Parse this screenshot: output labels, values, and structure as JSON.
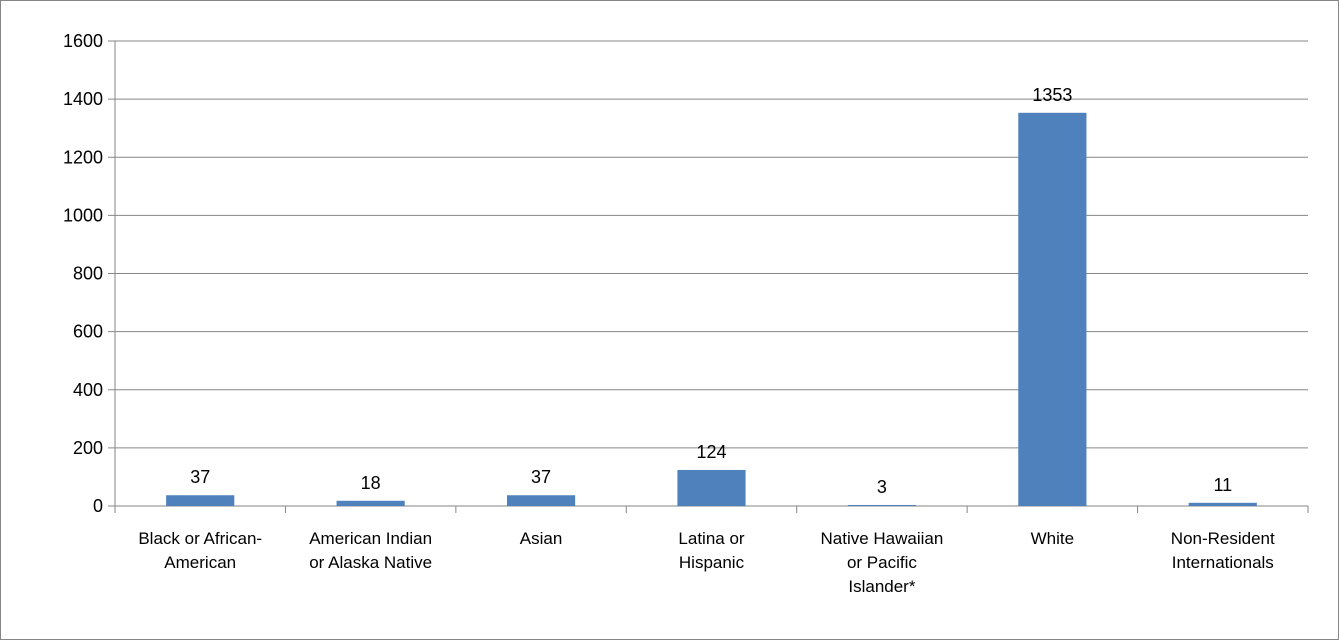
{
  "chart_data": {
    "type": "bar",
    "title": "",
    "xlabel": "",
    "ylabel": "",
    "ylim": [
      0,
      1600
    ],
    "y_ticks": [
      0,
      200,
      400,
      600,
      800,
      1000,
      1200,
      1400,
      1600
    ],
    "grid": "horizontal",
    "legend": "none",
    "bar_color": "#4f81bd",
    "categories": [
      [
        "Black or African-",
        "American"
      ],
      [
        "American Indian",
        "or Alaska Native"
      ],
      [
        "Asian"
      ],
      [
        "Latina or",
        "Hispanic"
      ],
      [
        "Native Hawaiian",
        "or Pacific",
        "Islander*"
      ],
      [
        "White"
      ],
      [
        "Non-Resident",
        "Internationals"
      ]
    ],
    "values": [
      37,
      18,
      37,
      124,
      3,
      1353,
      11
    ],
    "data_labels": [
      "37",
      "18",
      "37",
      "124",
      "3",
      "1353",
      "11"
    ]
  }
}
